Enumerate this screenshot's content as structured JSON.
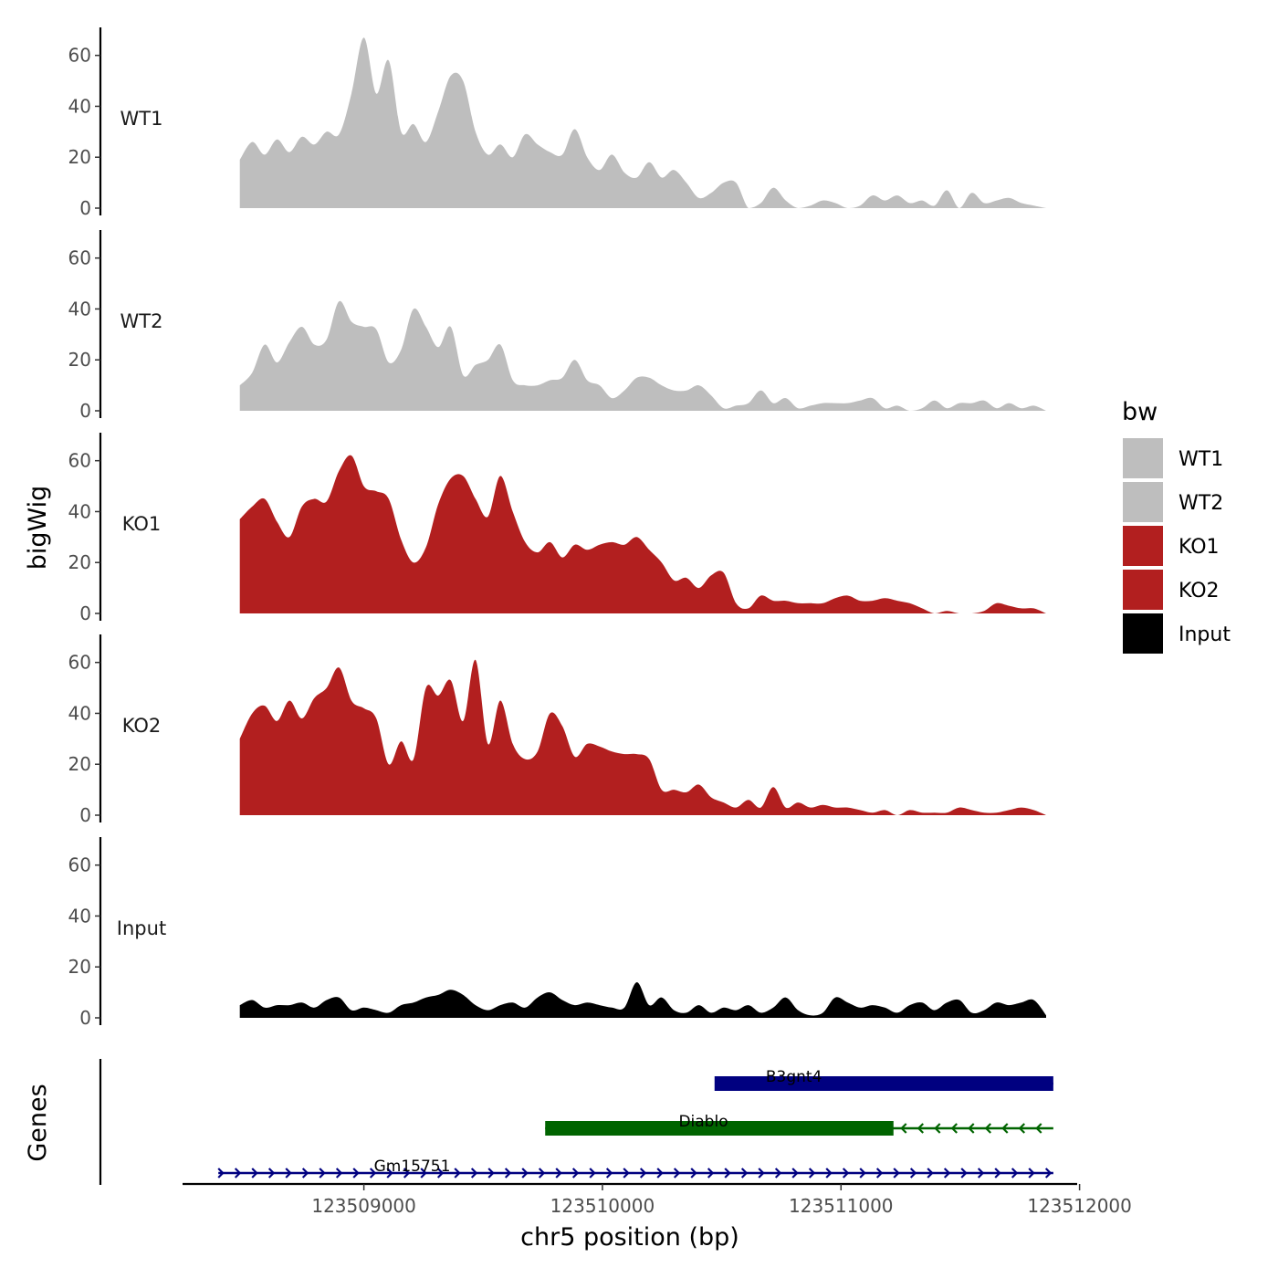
{
  "chart_data": {
    "type": "area",
    "ylabel": "bigWig",
    "xlabel": "chr5 position (bp)",
    "xlim": [
      123508240,
      123511990
    ],
    "ylim": [
      0,
      71
    ],
    "x_ticks": [
      123509000,
      123510000,
      123511000,
      123512000
    ],
    "x_tick_labels": [
      "123509000",
      "123510000",
      "123511000",
      "123512000"
    ],
    "y_ticks": [
      0,
      20,
      40,
      60
    ],
    "y_tick_labels": [
      "0",
      "20",
      "40",
      "60"
    ],
    "signal_range": [
      123508480,
      123511860
    ],
    "legend": {
      "title": "bw",
      "entries": [
        {
          "label": "WT1",
          "color": "#bebebe"
        },
        {
          "label": "WT2",
          "color": "#bebebe"
        },
        {
          "label": "KO1",
          "color": "#b21f1f"
        },
        {
          "label": "KO2",
          "color": "#b21f1f"
        },
        {
          "label": "Input",
          "color": "#000000"
        }
      ]
    },
    "series": [
      {
        "name": "WT1",
        "color": "#bebebe",
        "values": [
          19,
          26,
          21,
          27,
          22,
          28,
          25,
          30,
          29,
          45,
          67,
          45,
          58,
          30,
          33,
          26,
          38,
          52,
          50,
          30,
          21,
          25,
          20,
          29,
          25,
          22,
          21,
          31,
          20,
          15,
          21,
          14,
          12,
          18,
          12,
          15,
          10,
          4,
          6,
          10,
          10,
          0,
          2,
          8,
          3,
          0,
          1,
          3,
          2,
          0,
          1,
          5,
          3,
          5,
          2,
          3,
          1,
          7,
          0,
          6,
          2,
          3,
          4,
          2,
          1,
          0
        ]
      },
      {
        "name": "WT2",
        "color": "#bebebe",
        "values": [
          10,
          15,
          26,
          19,
          27,
          33,
          26,
          28,
          43,
          35,
          33,
          32,
          19,
          24,
          40,
          33,
          25,
          33,
          14,
          18,
          20,
          26,
          12,
          10,
          10,
          12,
          13,
          20,
          12,
          10,
          5,
          8,
          13,
          13,
          10,
          8,
          8,
          10,
          6,
          1,
          2,
          3,
          8,
          3,
          5,
          1,
          2,
          3,
          3,
          3,
          4,
          5,
          1,
          2,
          0,
          1,
          4,
          1,
          3,
          3,
          4,
          1,
          3,
          1,
          2,
          0
        ]
      },
      {
        "name": "KO1",
        "color": "#b21f1f",
        "values": [
          37,
          42,
          45,
          36,
          30,
          42,
          45,
          44,
          56,
          62,
          50,
          48,
          45,
          29,
          20,
          26,
          43,
          53,
          54,
          45,
          38,
          54,
          40,
          28,
          24,
          28,
          22,
          27,
          25,
          27,
          28,
          27,
          30,
          25,
          20,
          13,
          14,
          10,
          15,
          16,
          4,
          2,
          7,
          5,
          5,
          4,
          4,
          4,
          6,
          7,
          5,
          5,
          6,
          5,
          4,
          2,
          0,
          1,
          0,
          0,
          1,
          4,
          3,
          2,
          2,
          0
        ]
      },
      {
        "name": "KO2",
        "color": "#b21f1f",
        "values": [
          30,
          40,
          43,
          37,
          45,
          38,
          46,
          50,
          58,
          45,
          42,
          38,
          20,
          29,
          22,
          50,
          47,
          53,
          37,
          61,
          28,
          45,
          28,
          22,
          25,
          40,
          35,
          23,
          28,
          27,
          25,
          24,
          24,
          22,
          10,
          10,
          9,
          12,
          7,
          5,
          3,
          6,
          3,
          11,
          3,
          5,
          3,
          4,
          3,
          3,
          2,
          1,
          2,
          0,
          2,
          1,
          1,
          1,
          3,
          2,
          1,
          1,
          2,
          3,
          2,
          0
        ]
      },
      {
        "name": "Input",
        "color": "#000000",
        "values": [
          5,
          7,
          4,
          5,
          5,
          6,
          4,
          7,
          8,
          3,
          4,
          3,
          2,
          5,
          6,
          8,
          9,
          11,
          9,
          5,
          3,
          5,
          6,
          4,
          8,
          10,
          7,
          5,
          6,
          5,
          4,
          4,
          14,
          5,
          8,
          3,
          2,
          5,
          2,
          4,
          3,
          5,
          2,
          4,
          8,
          3,
          1,
          2,
          8,
          6,
          4,
          5,
          4,
          2,
          5,
          6,
          3,
          6,
          7,
          2,
          3,
          6,
          5,
          6,
          7,
          1
        ]
      }
    ],
    "genes_label": "Genes",
    "genes": [
      {
        "name": "B3gnt4",
        "start": 123510480,
        "end": 123511890,
        "thick_start": 123510470,
        "thick_end": 123511890,
        "strand": "+",
        "color": "#000080",
        "row": 1
      },
      {
        "name": "Diablo",
        "start": 123509760,
        "end": 123511890,
        "thick_start": 123509760,
        "thick_end": 123511220,
        "strand": "-",
        "color": "#006400",
        "row": 2
      },
      {
        "name": "Gm15751",
        "start": 123508390,
        "end": 123511890,
        "thick_start": null,
        "thick_end": null,
        "strand": "+",
        "color": "#000080",
        "row": 3
      }
    ]
  }
}
